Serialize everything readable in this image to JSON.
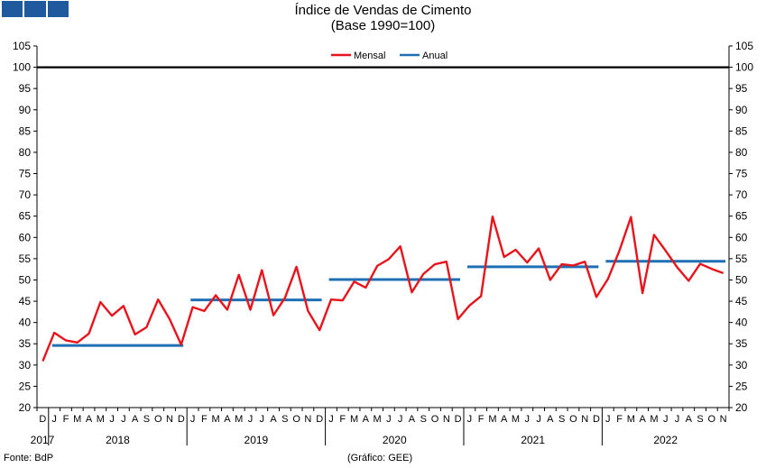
{
  "logo_colors": [
    "#1f5a9e",
    "#1f5a9e",
    "#1f5a9e"
  ],
  "footer": {
    "source": "Fonte: BdP",
    "credit": "(Gráfico: GEE)"
  },
  "chart_data": {
    "type": "line",
    "title": "Índice de Vendas de Cimento",
    "subtitle": "(Base 1990=100)",
    "ylim": [
      20,
      105
    ],
    "yticks": [
      20,
      25,
      30,
      35,
      40,
      45,
      50,
      55,
      60,
      65,
      70,
      75,
      80,
      85,
      90,
      95,
      100,
      105
    ],
    "reference_line": 100,
    "grid": false,
    "legend_position": "top-center",
    "x_month_labels": [
      "D",
      "J",
      "F",
      "M",
      "A",
      "M",
      "J",
      "J",
      "A",
      "S",
      "O",
      "N",
      "D",
      "J",
      "F",
      "M",
      "A",
      "M",
      "J",
      "J",
      "A",
      "S",
      "O",
      "N",
      "D",
      "J",
      "F",
      "M",
      "A",
      "M",
      "J",
      "J",
      "A",
      "S",
      "O",
      "N",
      "D",
      "J",
      "F",
      "M",
      "A",
      "M",
      "J",
      "J",
      "A",
      "S",
      "O",
      "N",
      "D",
      "J",
      "F",
      "M",
      "A",
      "M",
      "J",
      "J",
      "A",
      "S",
      "O",
      "N"
    ],
    "years": [
      "2017",
      "2018",
      "2019",
      "2020",
      "2021",
      "2022"
    ],
    "series": [
      {
        "name": "Mensal",
        "color": "#e8141c",
        "values": [
          30.9,
          37.6,
          35.8,
          35.3,
          37.4,
          44.8,
          41.6,
          43.9,
          37.2,
          38.9,
          45.4,
          40.8,
          34.8,
          43.6,
          42.7,
          46.4,
          43.0,
          51.2,
          43.0,
          52.3,
          41.7,
          45.8,
          53.1,
          42.7,
          38.2,
          45.4,
          45.2,
          49.6,
          48.2,
          53.3,
          54.9,
          57.9,
          47.1,
          51.4,
          53.7,
          54.3,
          40.8,
          44.0,
          46.2,
          64.9,
          55.4,
          57.1,
          54.1,
          57.4,
          50.0,
          53.7,
          53.4,
          54.3,
          46.0,
          50.2,
          56.9,
          64.8,
          46.9,
          60.6,
          56.9,
          53.0,
          49.8,
          53.8,
          52.6,
          51.6
        ]
      },
      {
        "name": "Anual",
        "color": "#1f6fb4",
        "segments": [
          {
            "year": "2018",
            "value": 34.6
          },
          {
            "year": "2019",
            "value": 45.3
          },
          {
            "year": "2020",
            "value": 50.1
          },
          {
            "year": "2021",
            "value": 53.1
          },
          {
            "year": "2022",
            "value": 54.4
          }
        ]
      }
    ]
  }
}
